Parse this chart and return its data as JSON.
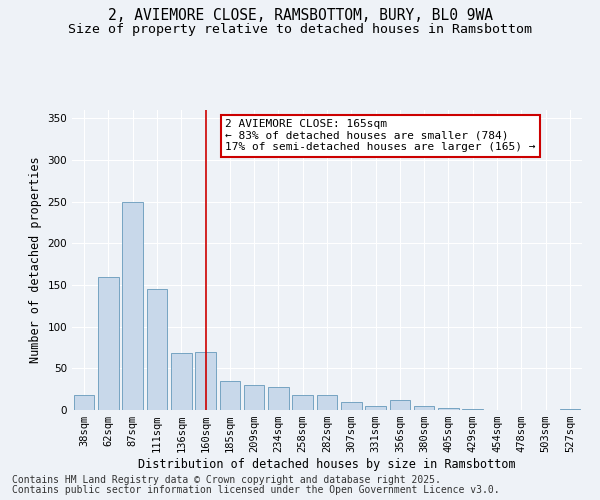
{
  "title_line1": "2, AVIEMORE CLOSE, RAMSBOTTOM, BURY, BL0 9WA",
  "title_line2": "Size of property relative to detached houses in Ramsbottom",
  "xlabel": "Distribution of detached houses by size in Ramsbottom",
  "ylabel": "Number of detached properties",
  "annotation_line1": "2 AVIEMORE CLOSE: 165sqm",
  "annotation_line2": "← 83% of detached houses are smaller (784)",
  "annotation_line3": "17% of semi-detached houses are larger (165) →",
  "footer_line1": "Contains HM Land Registry data © Crown copyright and database right 2025.",
  "footer_line2": "Contains public sector information licensed under the Open Government Licence v3.0.",
  "categories": [
    "38sqm",
    "62sqm",
    "87sqm",
    "111sqm",
    "136sqm",
    "160sqm",
    "185sqm",
    "209sqm",
    "234sqm",
    "258sqm",
    "282sqm",
    "307sqm",
    "331sqm",
    "356sqm",
    "380sqm",
    "405sqm",
    "429sqm",
    "454sqm",
    "478sqm",
    "503sqm",
    "527sqm"
  ],
  "values": [
    18,
    160,
    250,
    145,
    68,
    70,
    35,
    30,
    28,
    18,
    18,
    10,
    5,
    12,
    5,
    2,
    1,
    0,
    0,
    0,
    1
  ],
  "bar_color": "#c8d8ea",
  "bar_edge_color": "#6699bb",
  "red_line_index": 5,
  "red_line_color": "#cc0000",
  "background_color": "#eef2f7",
  "plot_bg_color": "#eef2f7",
  "ylim": [
    0,
    360
  ],
  "yticks": [
    0,
    50,
    100,
    150,
    200,
    250,
    300,
    350
  ],
  "annotation_box_color": "#cc0000",
  "annotation_box_fill": "#ffffff",
  "title_fontsize": 10.5,
  "subtitle_fontsize": 9.5,
  "axis_label_fontsize": 8.5,
  "tick_fontsize": 7.5,
  "footer_fontsize": 7,
  "annot_fontsize": 8
}
